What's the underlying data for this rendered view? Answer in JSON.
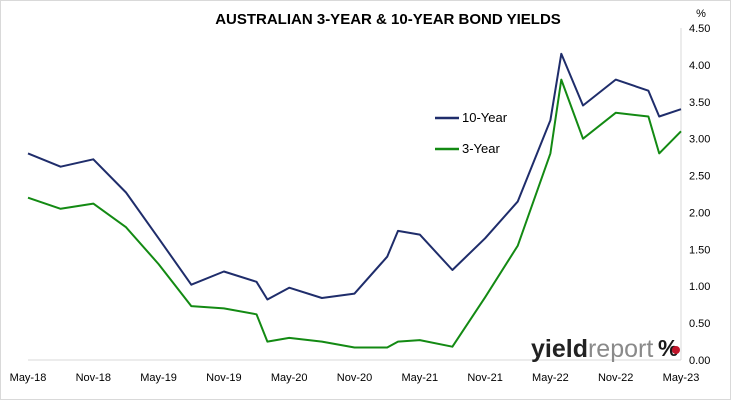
{
  "chart_data": {
    "type": "line",
    "title": "AUSTRALIAN 3-YEAR & 10-YEAR BOND YIELDS",
    "y_unit": "%",
    "xlabel": "",
    "ylabel": "",
    "x_tick_labels": [
      "May-18",
      "Nov-18",
      "May-19",
      "Nov-19",
      "May-20",
      "Nov-20",
      "May-21",
      "Nov-21",
      "May-22",
      "Nov-22",
      "May-23"
    ],
    "y_tick_labels": [
      "0.00",
      "0.50",
      "1.00",
      "1.50",
      "2.00",
      "2.50",
      "3.00",
      "3.50",
      "4.00",
      "4.50"
    ],
    "ylim": [
      0,
      4.5
    ],
    "grid": false,
    "legend_position": "center-right",
    "x": [
      "May-18",
      "Aug-18",
      "Nov-18",
      "Feb-19",
      "May-19",
      "Aug-19",
      "Nov-19",
      "Feb-20",
      "Mar-20",
      "May-20",
      "Aug-20",
      "Nov-20",
      "Feb-21",
      "Mar-21",
      "May-21",
      "Aug-21",
      "Nov-21",
      "Feb-22",
      "May-22",
      "Jun-22",
      "Aug-22",
      "Nov-22",
      "Feb-23",
      "Mar-23",
      "May-23"
    ],
    "series": [
      {
        "name": "10-Year",
        "color": "#1f2d6b",
        "values": [
          2.8,
          2.62,
          2.72,
          2.27,
          1.65,
          1.02,
          1.2,
          1.06,
          0.82,
          0.98,
          0.84,
          0.9,
          1.4,
          1.75,
          1.7,
          1.22,
          1.65,
          2.15,
          3.25,
          4.15,
          3.45,
          3.8,
          3.65,
          3.3,
          3.4
        ]
      },
      {
        "name": "3-Year",
        "color": "#138a13",
        "values": [
          2.2,
          2.05,
          2.12,
          1.8,
          1.3,
          0.73,
          0.7,
          0.62,
          0.25,
          0.3,
          0.25,
          0.17,
          0.17,
          0.25,
          0.27,
          0.18,
          0.85,
          1.55,
          2.8,
          3.8,
          3.0,
          3.35,
          3.3,
          2.8,
          3.1
        ]
      }
    ]
  },
  "brand": {
    "name_dark": "yield",
    "name_light": "report",
    "symbol": "%"
  }
}
